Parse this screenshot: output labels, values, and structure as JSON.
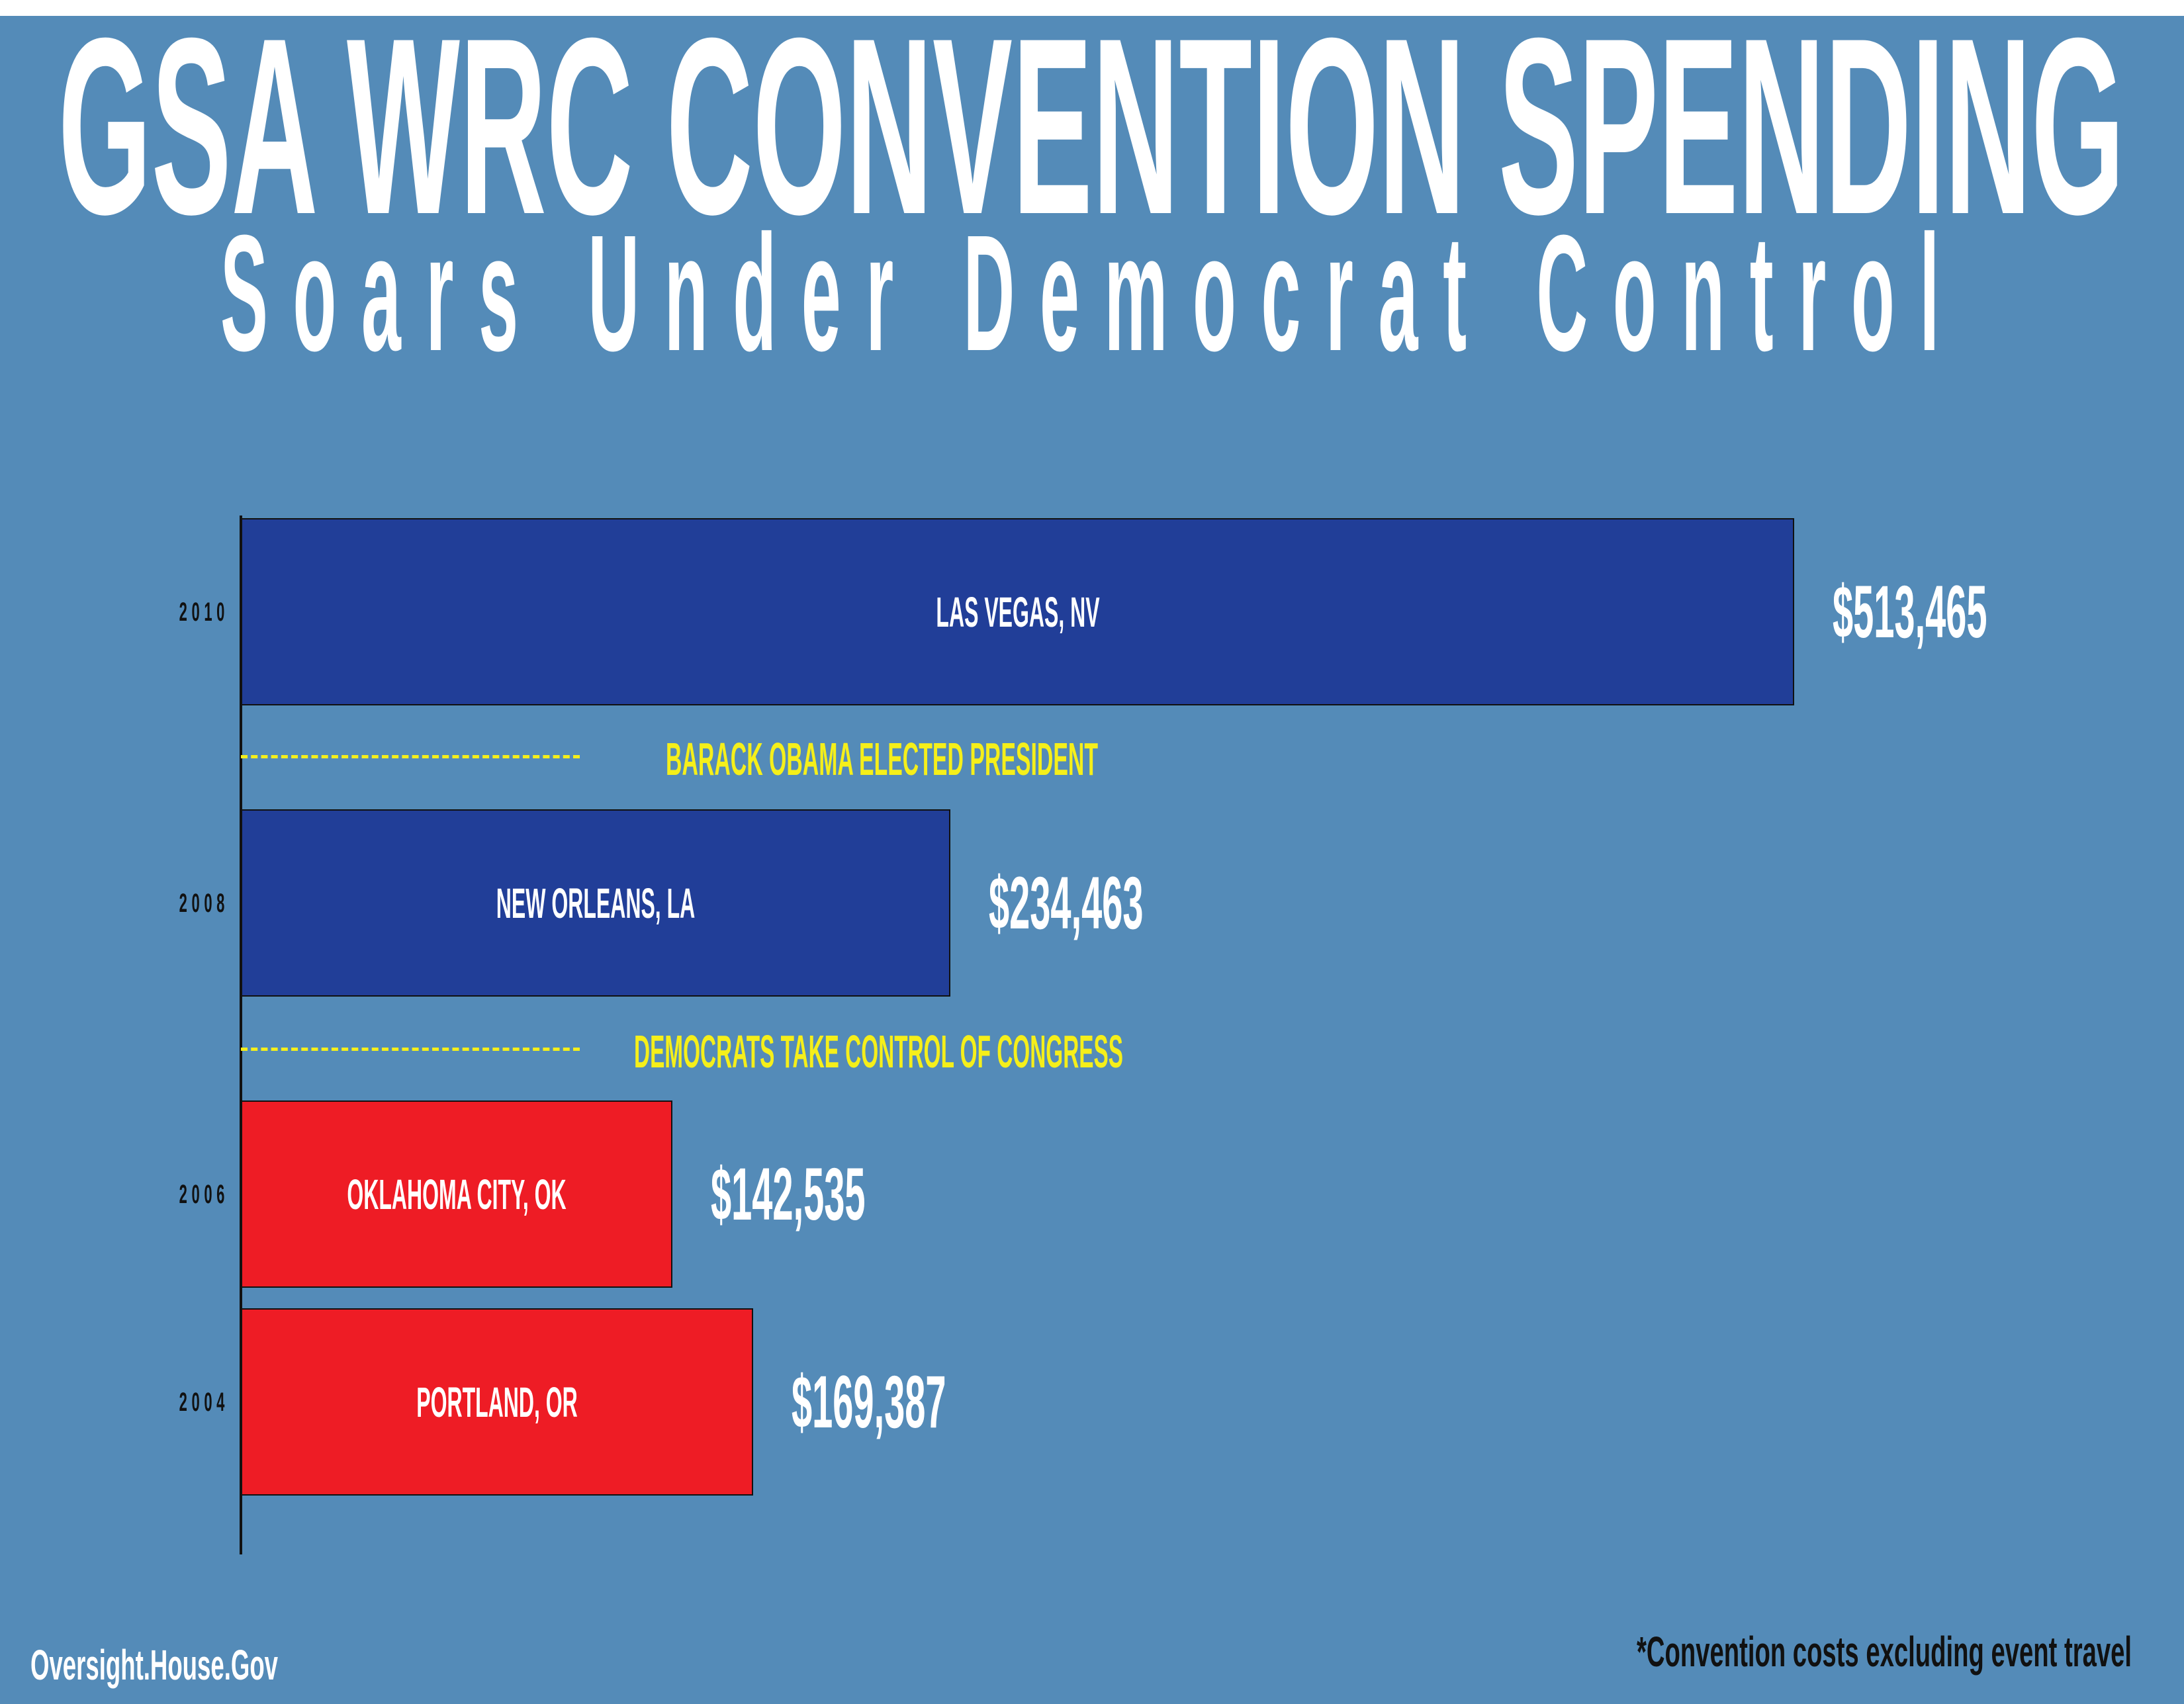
{
  "title": "GSA WRC CONVENTION SPENDING",
  "subtitle": "Soars Under Democrat Control",
  "footer": {
    "site": "Oversight.House.Gov",
    "note": "*Convention costs excluding event travel"
  },
  "colors": {
    "background": "#548bb8",
    "democrat_bar": "#213e98",
    "republican_bar": "#ee1c25",
    "event_text": "#f5ef1a"
  },
  "chart_data": {
    "type": "bar",
    "orientation": "horizontal",
    "title": "GSA WRC CONVENTION SPENDING",
    "subtitle": "Soars Under Democrat Control",
    "xlabel": "",
    "ylabel": "",
    "xlim": [
      0,
      513465
    ],
    "grid": false,
    "categories": [
      "2010",
      "2008",
      "2006",
      "2004"
    ],
    "bars": [
      {
        "year": "2010",
        "location": "LAS VEGAS, NV",
        "value": 513465,
        "label": "$513,465",
        "color": "#213e98"
      },
      {
        "year": "2008",
        "location": "NEW ORLEANS, LA",
        "value": 234463,
        "label": "$234,463",
        "color": "#213e98"
      },
      {
        "year": "2006",
        "location": "OKLAHOMA CITY, OK",
        "value": 142535,
        "label": "$142,535",
        "color": "#ee1c25"
      },
      {
        "year": "2004",
        "location": "PORTLAND, OR",
        "value": 169387,
        "label": "$169,387",
        "color": "#ee1c25"
      }
    ],
    "annotations": [
      {
        "text": "BARACK OBAMA ELECTED PRESIDENT",
        "between": [
          "2010",
          "2008"
        ]
      },
      {
        "text": "DEMOCRATS TAKE CONTROL OF CONGRESS",
        "between": [
          "2008",
          "2006"
        ]
      }
    ]
  }
}
